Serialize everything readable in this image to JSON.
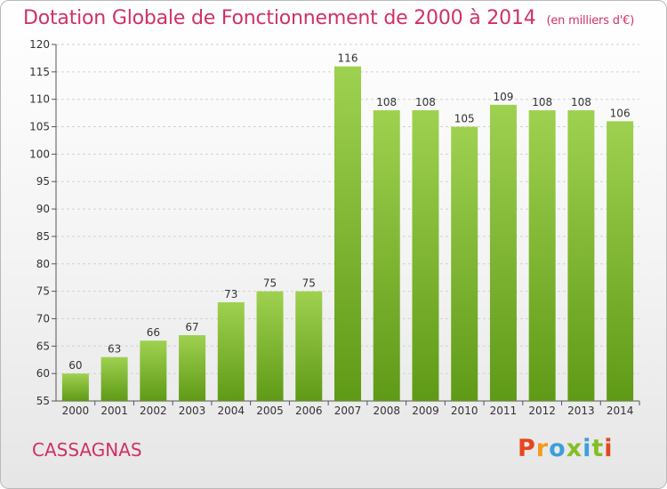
{
  "header": {
    "title": "Dotation Globale de Fonctionnement de 2000 à 2014",
    "unit": "(en milliers d'€)"
  },
  "footer": {
    "commune": "CASSAGNAS",
    "logo": [
      "P",
      "r",
      "o",
      "x",
      "i",
      "t",
      "i"
    ]
  },
  "colors": {
    "title": "#d0306a",
    "bar_top": "#9fd150",
    "bar_bottom": "#5f9a17",
    "logo": [
      "#e8451e",
      "#f39a1c",
      "#3ca0d8",
      "#84be24",
      "#3ca0d8",
      "#84be24",
      "#e8451e"
    ]
  },
  "chart_data": {
    "type": "bar",
    "title": "Dotation Globale de Fonctionnement de 2000 à 2014",
    "subtitle": "(en milliers d'€)",
    "categories": [
      "2000",
      "2001",
      "2002",
      "2003",
      "2004",
      "2005",
      "2006",
      "2007",
      "2008",
      "2009",
      "2010",
      "2011",
      "2012",
      "2013",
      "2014"
    ],
    "values": [
      60,
      63,
      66,
      67,
      73,
      75,
      75,
      116,
      108,
      108,
      105,
      109,
      108,
      108,
      106
    ],
    "ylim": [
      55,
      120
    ],
    "yticks": [
      55,
      60,
      65,
      70,
      75,
      80,
      85,
      90,
      95,
      100,
      105,
      110,
      115,
      120
    ],
    "grid": true
  }
}
